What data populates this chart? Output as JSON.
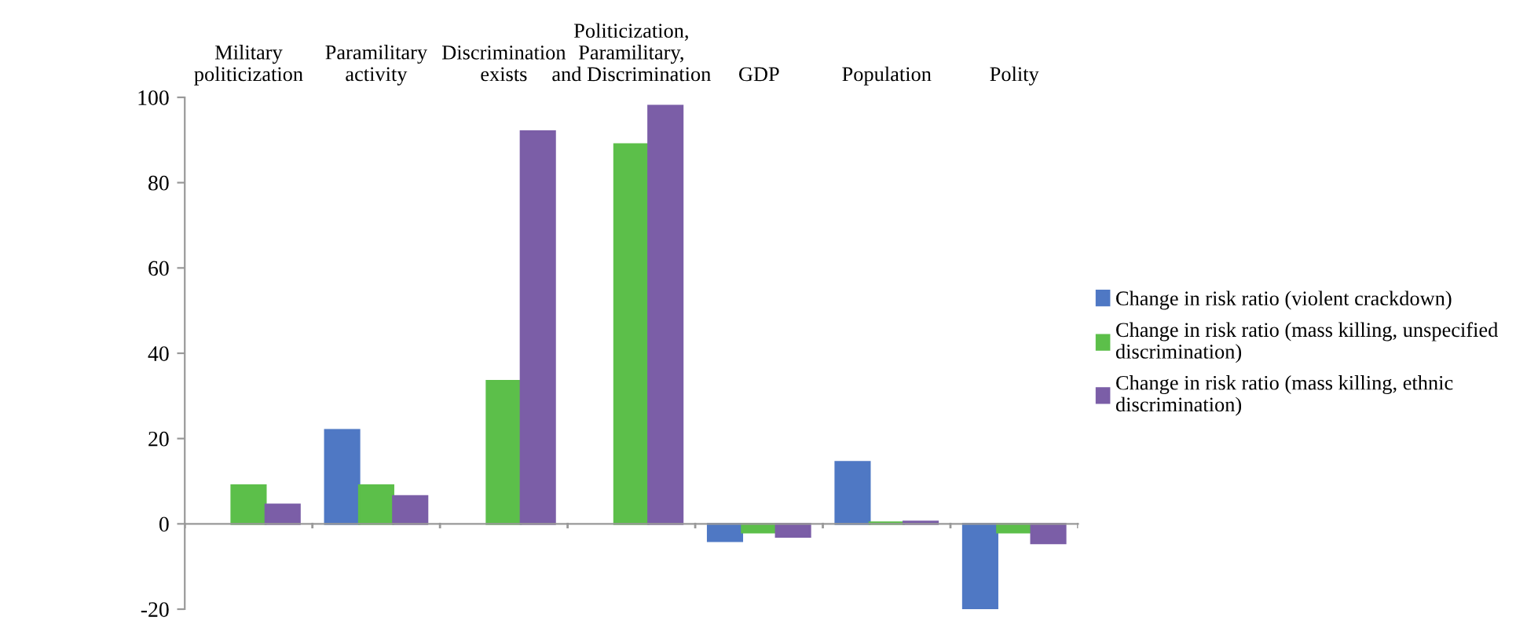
{
  "chart_data": {
    "type": "bar",
    "categories": [
      "Military\npoliticization",
      "Paramilitary\nactivity",
      "Discrimination\nexists",
      "Politicization,\nParamilitary,\nand Discrimination",
      "GDP",
      "Population",
      "Polity"
    ],
    "series": [
      {
        "name": "Change in risk ratio (violent crackdown)",
        "color": "#4f78c4",
        "values": [
          null,
          22,
          null,
          null,
          -4,
          14.5,
          -20
        ]
      },
      {
        "name": "Change in risk ratio (mass killing, unspecified\ndiscrimination)",
        "color": "#5cbf4a",
        "values": [
          9,
          9,
          33.5,
          89,
          -2,
          0.3,
          -2
        ]
      },
      {
        "name": "Change in risk ratio (mass killing, ethnic\ndiscrimination)",
        "color": "#7b5ea7",
        "values": [
          4.5,
          6.5,
          92,
          98,
          -3,
          0.5,
          -4.5
        ]
      }
    ],
    "ylim": [
      -20,
      100
    ],
    "yticks": [
      -20,
      0,
      20,
      40,
      60,
      80,
      100
    ],
    "legend": "right"
  }
}
